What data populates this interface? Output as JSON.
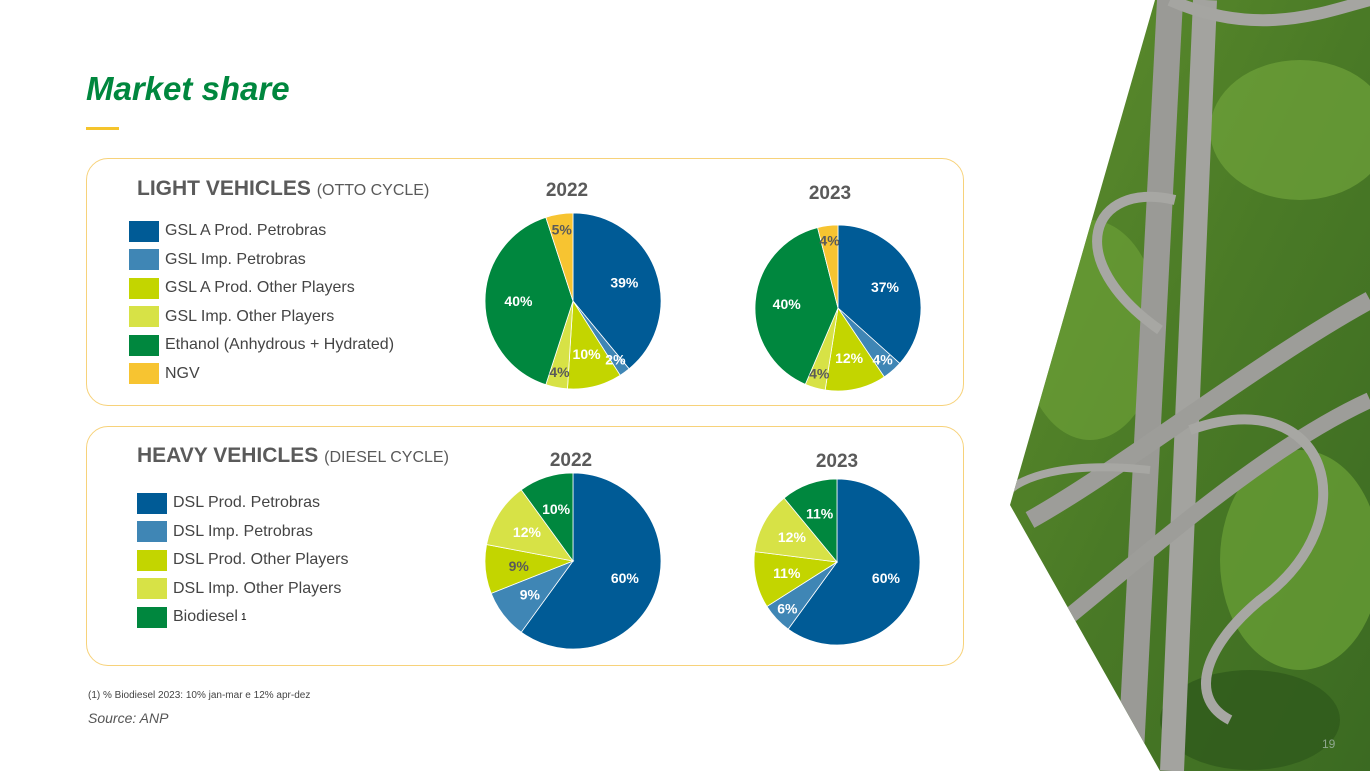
{
  "page": {
    "title": "Market share",
    "footnote": "(1)  % Biodiesel 2023:  10% jan-mar e 12% apr-dez",
    "source": "Source: ANP",
    "page_number": "19"
  },
  "light": {
    "title": "LIGHT VEHICLES",
    "subtitle": "(OTTO CYCLE)",
    "legend": [
      "GSL A Prod. Petrobras",
      "GSL Imp. Petrobras",
      "GSL A Prod. Other Players",
      "GSL Imp. Other Players",
      "Ethanol (Anhydrous + Hydrated)",
      "NGV"
    ],
    "colors": [
      "#005b96",
      "#3f86b5",
      "#c3d500",
      "#d7e246",
      "#00873e",
      "#f7c431"
    ]
  },
  "heavy": {
    "title": "HEAVY VEHICLES",
    "subtitle": "(DIESEL CYCLE)",
    "legend": [
      "DSL Prod. Petrobras",
      "DSL Imp. Petrobras",
      "DSL Prod. Other Players",
      "DSL Imp. Other Players",
      "Biodiesel"
    ],
    "legend_note": "1",
    "colors": [
      "#005b96",
      "#3f86b5",
      "#c3d500",
      "#d7e246",
      "#00873e"
    ]
  },
  "chart_data": [
    {
      "type": "pie",
      "title": "2022",
      "group": "light",
      "categories": [
        "GSL A Prod. Petrobras",
        "GSL Imp. Petrobras",
        "GSL A Prod. Other Players",
        "GSL Imp. Other Players",
        "Ethanol (Anhydrous + Hydrated)",
        "NGV"
      ],
      "values": [
        39,
        2,
        10,
        4,
        40,
        5
      ],
      "labels": [
        "39%",
        "2%",
        "10%",
        "4%",
        "40%",
        "5%"
      ]
    },
    {
      "type": "pie",
      "title": "2023",
      "group": "light",
      "categories": [
        "GSL A Prod. Petrobras",
        "GSL Imp. Petrobras",
        "GSL A Prod. Other Players",
        "GSL Imp. Other Players",
        "Ethanol (Anhydrous + Hydrated)",
        "NGV"
      ],
      "values": [
        37,
        4,
        12,
        4,
        40,
        4
      ],
      "labels": [
        "37%",
        "4%",
        "12%",
        "4%",
        "40%",
        "4%"
      ]
    },
    {
      "type": "pie",
      "title": "2022",
      "group": "heavy",
      "categories": [
        "DSL Prod. Petrobras",
        "DSL Imp. Petrobras",
        "DSL Prod. Other Players",
        "DSL Imp. Other Players",
        "Biodiesel"
      ],
      "values": [
        60,
        9,
        9,
        12,
        10
      ],
      "labels": [
        "60%",
        "9%",
        "9%",
        "12%",
        "10%"
      ]
    },
    {
      "type": "pie",
      "title": "2023",
      "group": "heavy",
      "categories": [
        "DSL Prod. Petrobras",
        "DSL Imp. Petrobras",
        "DSL Prod. Other Players",
        "DSL Imp. Other Players",
        "Biodiesel"
      ],
      "values": [
        60,
        6,
        11,
        12,
        11
      ],
      "labels": [
        "60%",
        "6%",
        "11%",
        "12%",
        "11%"
      ]
    }
  ]
}
